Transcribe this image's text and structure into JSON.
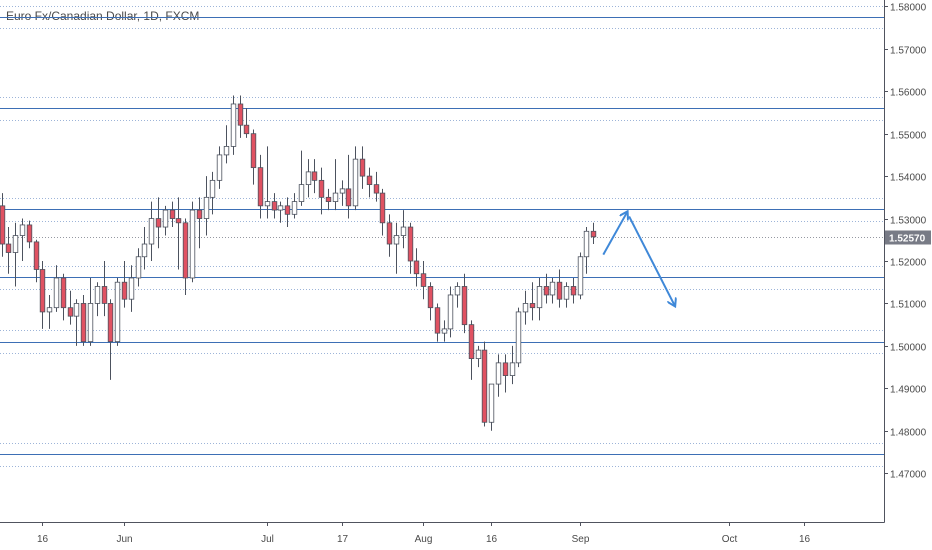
{
  "chart_data": {
    "type": "candlestick",
    "title": "Euro Fx/Canadian Dollar, 1D, FXCM",
    "ylim": [
      1.4585,
      1.5815
    ],
    "grid": false,
    "y_ticks": [
      "1.58000",
      "1.57000",
      "1.56000",
      "1.55000",
      "1.54000",
      "1.53000",
      "1.52000",
      "1.51000",
      "1.50000",
      "1.49000",
      "1.48000",
      "1.47000"
    ],
    "y_tick_values": [
      1.58,
      1.57,
      1.56,
      1.55,
      1.54,
      1.53,
      1.52,
      1.51,
      1.5,
      1.49,
      1.48,
      1.47
    ],
    "x_ticks": [
      {
        "label": "16",
        "bar": 6
      },
      {
        "label": "Jun",
        "bar": 18
      },
      {
        "label": "Jul",
        "bar": 39
      },
      {
        "label": "17",
        "bar": 50
      },
      {
        "label": "Aug",
        "bar": 62
      },
      {
        "label": "16",
        "bar": 72
      },
      {
        "label": "Sep",
        "bar": 85
      },
      {
        "label": "Oct",
        "bar": 107
      },
      {
        "label": "16",
        "bar": 118
      }
    ],
    "bar_count": 130,
    "last_price": {
      "label": "1.52570",
      "value": 1.5257,
      "color": "#787b86"
    },
    "colors": {
      "up": "#ffffff",
      "down": "#e05262",
      "wick": "#4c525e",
      "level": "#3d6fb5",
      "level_dotted": "#9db4d8",
      "arrow": "#3f88d8"
    },
    "levels": [
      {
        "value": 1.5775,
        "dotted_offset": 0.0027
      },
      {
        "value": 1.556,
        "dotted_offset": 0.0027
      },
      {
        "value": 1.5322,
        "dotted_offset": 0.0027
      },
      {
        "value": 1.5162,
        "dotted_offset": 0.0027
      },
      {
        "value": 1.501,
        "dotted_offset": 0.0027
      },
      {
        "value": 1.4745,
        "dotted_offset": 0.0027
      }
    ],
    "arrows": [
      {
        "from": [
          88.5,
          1.5215
        ],
        "to": [
          92.0,
          1.5315
        ]
      },
      {
        "from": [
          92.3,
          1.5305
        ],
        "to": [
          99.0,
          1.5095
        ]
      }
    ],
    "candles": [
      [
        1.533,
        1.536,
        1.521,
        1.524
      ],
      [
        1.524,
        1.528,
        1.517,
        1.522
      ],
      [
        1.522,
        1.529,
        1.514,
        1.526
      ],
      [
        1.526,
        1.53,
        1.52,
        1.5285
      ],
      [
        1.5285,
        1.5295,
        1.523,
        1.5245
      ],
      [
        1.5245,
        1.525,
        1.515,
        1.518
      ],
      [
        1.518,
        1.52,
        1.504,
        1.508
      ],
      [
        1.508,
        1.512,
        1.504,
        1.509
      ],
      [
        1.509,
        1.519,
        1.508,
        1.516
      ],
      [
        1.516,
        1.517,
        1.506,
        1.509
      ],
      [
        1.509,
        1.513,
        1.505,
        1.507
      ],
      [
        1.507,
        1.511,
        1.5,
        1.51
      ],
      [
        1.51,
        1.512,
        1.5,
        1.501
      ],
      [
        1.501,
        1.516,
        1.5,
        1.51
      ],
      [
        1.51,
        1.515,
        1.507,
        1.514
      ],
      [
        1.514,
        1.52,
        1.507,
        1.51
      ],
      [
        1.51,
        1.511,
        1.492,
        1.501
      ],
      [
        1.501,
        1.516,
        1.5,
        1.515
      ],
      [
        1.515,
        1.52,
        1.509,
        1.511
      ],
      [
        1.511,
        1.519,
        1.508,
        1.516
      ],
      [
        1.516,
        1.523,
        1.514,
        1.521
      ],
      [
        1.521,
        1.528,
        1.518,
        1.524
      ],
      [
        1.524,
        1.534,
        1.52,
        1.53
      ],
      [
        1.53,
        1.535,
        1.523,
        1.528
      ],
      [
        1.528,
        1.533,
        1.526,
        1.532
      ],
      [
        1.532,
        1.534,
        1.528,
        1.53
      ],
      [
        1.53,
        1.535,
        1.518,
        1.529
      ],
      [
        1.529,
        1.53,
        1.512,
        1.516
      ],
      [
        1.516,
        1.534,
        1.515,
        1.532
      ],
      [
        1.532,
        1.535,
        1.523,
        1.53
      ],
      [
        1.53,
        1.54,
        1.526,
        1.535
      ],
      [
        1.535,
        1.541,
        1.531,
        1.539
      ],
      [
        1.539,
        1.547,
        1.537,
        1.545
      ],
      [
        1.545,
        1.552,
        1.543,
        1.547
      ],
      [
        1.547,
        1.559,
        1.545,
        1.557
      ],
      [
        1.557,
        1.559,
        1.549,
        1.552
      ],
      [
        1.552,
        1.556,
        1.549,
        1.55
      ],
      [
        1.55,
        1.551,
        1.538,
        1.542
      ],
      [
        1.542,
        1.545,
        1.53,
        1.533
      ],
      [
        1.533,
        1.547,
        1.53,
        1.534
      ],
      [
        1.534,
        1.536,
        1.53,
        1.532
      ],
      [
        1.532,
        1.534,
        1.529,
        1.533
      ],
      [
        1.533,
        1.535,
        1.528,
        1.531
      ],
      [
        1.531,
        1.536,
        1.53,
        1.534
      ],
      [
        1.534,
        1.546,
        1.533,
        1.538
      ],
      [
        1.538,
        1.544,
        1.535,
        1.541
      ],
      [
        1.541,
        1.544,
        1.536,
        1.539
      ],
      [
        1.539,
        1.542,
        1.531,
        1.535
      ],
      [
        1.535,
        1.537,
        1.532,
        1.534
      ],
      [
        1.534,
        1.544,
        1.532,
        1.536
      ],
      [
        1.536,
        1.539,
        1.533,
        1.537
      ],
      [
        1.537,
        1.545,
        1.53,
        1.533
      ],
      [
        1.533,
        1.547,
        1.532,
        1.544
      ],
      [
        1.544,
        1.547,
        1.537,
        1.54
      ],
      [
        1.54,
        1.542,
        1.535,
        1.538
      ],
      [
        1.538,
        1.541,
        1.534,
        1.536
      ],
      [
        1.536,
        1.537,
        1.526,
        1.529
      ],
      [
        1.529,
        1.531,
        1.521,
        1.524
      ],
      [
        1.524,
        1.529,
        1.517,
        1.526
      ],
      [
        1.526,
        1.532,
        1.523,
        1.528
      ],
      [
        1.528,
        1.529,
        1.517,
        1.52
      ],
      [
        1.52,
        1.523,
        1.514,
        1.517
      ],
      [
        1.517,
        1.52,
        1.511,
        1.514
      ],
      [
        1.514,
        1.515,
        1.506,
        1.509
      ],
      [
        1.509,
        1.51,
        1.501,
        1.503
      ],
      [
        1.503,
        1.506,
        1.501,
        1.504
      ],
      [
        1.504,
        1.514,
        1.502,
        1.512
      ],
      [
        1.512,
        1.515,
        1.509,
        1.514
      ],
      [
        1.514,
        1.517,
        1.503,
        1.505
      ],
      [
        1.505,
        1.506,
        1.492,
        1.497
      ],
      [
        1.497,
        1.5,
        1.495,
        1.499
      ],
      [
        1.499,
        1.501,
        1.481,
        1.482
      ],
      [
        1.482,
        1.491,
        1.48,
        1.491
      ],
      [
        1.491,
        1.498,
        1.488,
        1.496
      ],
      [
        1.496,
        1.498,
        1.489,
        1.493
      ],
      [
        1.493,
        1.5,
        1.491,
        1.496
      ],
      [
        1.496,
        1.509,
        1.495,
        1.508
      ],
      [
        1.508,
        1.513,
        1.505,
        1.51
      ],
      [
        1.51,
        1.515,
        1.506,
        1.509
      ],
      [
        1.509,
        1.516,
        1.506,
        1.514
      ],
      [
        1.514,
        1.517,
        1.51,
        1.512
      ],
      [
        1.512,
        1.516,
        1.51,
        1.515
      ],
      [
        1.515,
        1.518,
        1.509,
        1.511
      ],
      [
        1.511,
        1.515,
        1.509,
        1.514
      ],
      [
        1.514,
        1.516,
        1.51,
        1.512
      ],
      [
        1.512,
        1.522,
        1.511,
        1.521
      ],
      [
        1.521,
        1.528,
        1.517,
        1.527
      ],
      [
        1.527,
        1.529,
        1.524,
        1.5257
      ]
    ]
  }
}
